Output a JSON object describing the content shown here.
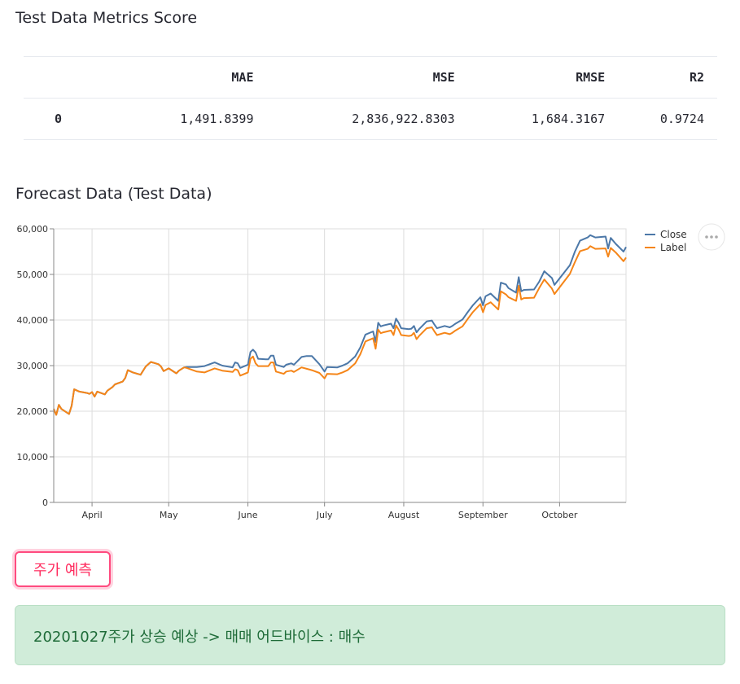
{
  "metrics_section": {
    "title": "Test Data Metrics Score",
    "columns": [
      "MAE",
      "MSE",
      "RMSE",
      "R2"
    ],
    "rows": [
      {
        "index": "0",
        "values": [
          "1,491.8399",
          "2,836,922.8303",
          "1,684.3167",
          "0.9724"
        ]
      }
    ]
  },
  "forecast_section": {
    "title": "Forecast Data (Test Data)"
  },
  "chart_data": {
    "type": "line",
    "title": "",
    "xlabel": "",
    "ylabel": "",
    "x_ticks": [
      "April",
      "May",
      "June",
      "July",
      "August",
      "September",
      "October"
    ],
    "x_range": [
      "2020-03-17",
      "2020-10-27"
    ],
    "ylim": [
      0,
      60000
    ],
    "y_ticks": [
      "0",
      "10,000",
      "20,000",
      "30,000",
      "40,000",
      "50,000",
      "60,000"
    ],
    "grid": true,
    "legend_position": "top-right",
    "series": [
      {
        "name": "Close",
        "color": "#4c78a8",
        "values": [
          [
            "2020-03-17",
            20500
          ],
          [
            "2020-03-18",
            19200
          ],
          [
            "2020-03-19",
            21400
          ],
          [
            "2020-03-20",
            20500
          ],
          [
            "2020-03-23",
            19400
          ],
          [
            "2020-03-24",
            21200
          ],
          [
            "2020-03-25",
            24800
          ],
          [
            "2020-03-27",
            24300
          ],
          [
            "2020-03-30",
            24000
          ],
          [
            "2020-03-31",
            23800
          ],
          [
            "2020-04-01",
            24200
          ],
          [
            "2020-04-02",
            23200
          ],
          [
            "2020-04-03",
            24300
          ],
          [
            "2020-04-06",
            23700
          ],
          [
            "2020-04-07",
            24500
          ],
          [
            "2020-04-09",
            25300
          ],
          [
            "2020-04-10",
            25900
          ],
          [
            "2020-04-13",
            26500
          ],
          [
            "2020-04-14",
            27300
          ],
          [
            "2020-04-15",
            29000
          ],
          [
            "2020-04-17",
            28500
          ],
          [
            "2020-04-20",
            28000
          ],
          [
            "2020-04-22",
            29800
          ],
          [
            "2020-04-24",
            30800
          ],
          [
            "2020-04-27",
            30300
          ],
          [
            "2020-04-28",
            29800
          ],
          [
            "2020-04-29",
            28800
          ],
          [
            "2020-05-01",
            29400
          ],
          [
            "2020-05-04",
            28300
          ],
          [
            "2020-05-05",
            28900
          ],
          [
            "2020-05-07",
            29600
          ],
          [
            "2020-05-08",
            29700
          ],
          [
            "2020-05-12",
            29700
          ],
          [
            "2020-05-15",
            29900
          ],
          [
            "2020-05-19",
            30700
          ],
          [
            "2020-05-22",
            30000
          ],
          [
            "2020-05-26",
            29600
          ],
          [
            "2020-05-27",
            30700
          ],
          [
            "2020-05-28",
            30500
          ],
          [
            "2020-05-29",
            29500
          ],
          [
            "2020-06-01",
            30200
          ],
          [
            "2020-06-02",
            33000
          ],
          [
            "2020-06-03",
            33500
          ],
          [
            "2020-06-04",
            32900
          ],
          [
            "2020-06-05",
            31500
          ],
          [
            "2020-06-08",
            31400
          ],
          [
            "2020-06-09",
            31400
          ],
          [
            "2020-06-10",
            32200
          ],
          [
            "2020-06-11",
            32200
          ],
          [
            "2020-06-12",
            30200
          ],
          [
            "2020-06-15",
            29700
          ],
          [
            "2020-06-16",
            30200
          ],
          [
            "2020-06-18",
            30500
          ],
          [
            "2020-06-19",
            30200
          ],
          [
            "2020-06-22",
            31900
          ],
          [
            "2020-06-24",
            32100
          ],
          [
            "2020-06-26",
            32100
          ],
          [
            "2020-06-29",
            30300
          ],
          [
            "2020-07-01",
            28700
          ],
          [
            "2020-07-02",
            29700
          ],
          [
            "2020-07-06",
            29600
          ],
          [
            "2020-07-08",
            30000
          ],
          [
            "2020-07-10",
            30500
          ],
          [
            "2020-07-13",
            32000
          ],
          [
            "2020-07-15",
            34000
          ],
          [
            "2020-07-17",
            36800
          ],
          [
            "2020-07-20",
            37500
          ],
          [
            "2020-07-21",
            35200
          ],
          [
            "2020-07-22",
            39400
          ],
          [
            "2020-07-23",
            38600
          ],
          [
            "2020-07-24",
            38800
          ],
          [
            "2020-07-27",
            39200
          ],
          [
            "2020-07-28",
            38200
          ],
          [
            "2020-07-29",
            40300
          ],
          [
            "2020-07-30",
            39400
          ],
          [
            "2020-07-31",
            38200
          ],
          [
            "2020-08-03",
            38000
          ],
          [
            "2020-08-04",
            38100
          ],
          [
            "2020-08-05",
            38700
          ],
          [
            "2020-08-06",
            37300
          ],
          [
            "2020-08-07",
            38000
          ],
          [
            "2020-08-10",
            39700
          ],
          [
            "2020-08-12",
            39900
          ],
          [
            "2020-08-13",
            39000
          ],
          [
            "2020-08-14",
            38200
          ],
          [
            "2020-08-17",
            38700
          ],
          [
            "2020-08-19",
            38400
          ],
          [
            "2020-08-20",
            38700
          ],
          [
            "2020-08-21",
            39100
          ],
          [
            "2020-08-24",
            40100
          ],
          [
            "2020-08-26",
            41700
          ],
          [
            "2020-08-28",
            43200
          ],
          [
            "2020-08-31",
            45000
          ],
          [
            "2020-09-01",
            43200
          ],
          [
            "2020-09-02",
            45200
          ],
          [
            "2020-09-04",
            45800
          ],
          [
            "2020-09-07",
            44200
          ],
          [
            "2020-09-08",
            48200
          ],
          [
            "2020-09-10",
            47800
          ],
          [
            "2020-09-11",
            47000
          ],
          [
            "2020-09-14",
            46000
          ],
          [
            "2020-09-15",
            49400
          ],
          [
            "2020-09-16",
            46300
          ],
          [
            "2020-09-17",
            46600
          ],
          [
            "2020-09-21",
            46700
          ],
          [
            "2020-09-23",
            48400
          ],
          [
            "2020-09-25",
            50700
          ],
          [
            "2020-09-28",
            49200
          ],
          [
            "2020-09-29",
            47700
          ],
          [
            "2020-10-05",
            52000
          ],
          [
            "2020-10-07",
            55000
          ],
          [
            "2020-10-09",
            57400
          ],
          [
            "2020-10-12",
            58100
          ],
          [
            "2020-10-13",
            58600
          ],
          [
            "2020-10-15",
            58100
          ],
          [
            "2020-10-19",
            58300
          ],
          [
            "2020-10-20",
            55700
          ],
          [
            "2020-10-21",
            58000
          ],
          [
            "2020-10-23",
            56700
          ],
          [
            "2020-10-26",
            55000
          ],
          [
            "2020-10-27",
            56000
          ]
        ]
      },
      {
        "name": "Label",
        "color": "#f58518",
        "values": [
          [
            "2020-03-17",
            20500
          ],
          [
            "2020-03-18",
            19200
          ],
          [
            "2020-03-19",
            21400
          ],
          [
            "2020-03-20",
            20500
          ],
          [
            "2020-03-23",
            19400
          ],
          [
            "2020-03-24",
            21200
          ],
          [
            "2020-03-25",
            24800
          ],
          [
            "2020-03-27",
            24300
          ],
          [
            "2020-03-30",
            24000
          ],
          [
            "2020-03-31",
            23800
          ],
          [
            "2020-04-01",
            24200
          ],
          [
            "2020-04-02",
            23200
          ],
          [
            "2020-04-03",
            24300
          ],
          [
            "2020-04-06",
            23700
          ],
          [
            "2020-04-07",
            24500
          ],
          [
            "2020-04-09",
            25300
          ],
          [
            "2020-04-10",
            25900
          ],
          [
            "2020-04-13",
            26500
          ],
          [
            "2020-04-14",
            27300
          ],
          [
            "2020-04-15",
            29000
          ],
          [
            "2020-04-17",
            28500
          ],
          [
            "2020-04-20",
            28000
          ],
          [
            "2020-04-22",
            29800
          ],
          [
            "2020-04-24",
            30800
          ],
          [
            "2020-04-27",
            30300
          ],
          [
            "2020-04-28",
            29800
          ],
          [
            "2020-04-29",
            28800
          ],
          [
            "2020-05-01",
            29400
          ],
          [
            "2020-05-04",
            28300
          ],
          [
            "2020-05-05",
            28900
          ],
          [
            "2020-05-07",
            29600
          ],
          [
            "2020-05-08",
            29500
          ],
          [
            "2020-05-12",
            28700
          ],
          [
            "2020-05-15",
            28500
          ],
          [
            "2020-05-19",
            29400
          ],
          [
            "2020-05-22",
            28900
          ],
          [
            "2020-05-26",
            28600
          ],
          [
            "2020-05-27",
            29200
          ],
          [
            "2020-05-28",
            29000
          ],
          [
            "2020-05-29",
            27800
          ],
          [
            "2020-06-01",
            28500
          ],
          [
            "2020-06-02",
            31500
          ],
          [
            "2020-06-03",
            32000
          ],
          [
            "2020-06-04",
            30500
          ],
          [
            "2020-06-05",
            29900
          ],
          [
            "2020-06-08",
            29900
          ],
          [
            "2020-06-09",
            29900
          ],
          [
            "2020-06-10",
            30700
          ],
          [
            "2020-06-11",
            30700
          ],
          [
            "2020-06-12",
            28700
          ],
          [
            "2020-06-15",
            28200
          ],
          [
            "2020-06-16",
            28700
          ],
          [
            "2020-06-18",
            28900
          ],
          [
            "2020-06-19",
            28600
          ],
          [
            "2020-06-22",
            29600
          ],
          [
            "2020-06-24",
            29300
          ],
          [
            "2020-06-26",
            29000
          ],
          [
            "2020-06-29",
            28400
          ],
          [
            "2020-07-01",
            27200
          ],
          [
            "2020-07-02",
            28200
          ],
          [
            "2020-07-06",
            28100
          ],
          [
            "2020-07-08",
            28500
          ],
          [
            "2020-07-10",
            29000
          ],
          [
            "2020-07-13",
            30500
          ],
          [
            "2020-07-15",
            32500
          ],
          [
            "2020-07-17",
            35300
          ],
          [
            "2020-07-20",
            36000
          ],
          [
            "2020-07-21",
            33700
          ],
          [
            "2020-07-22",
            37900
          ],
          [
            "2020-07-23",
            37100
          ],
          [
            "2020-07-24",
            37300
          ],
          [
            "2020-07-27",
            37700
          ],
          [
            "2020-07-28",
            36700
          ],
          [
            "2020-07-29",
            38800
          ],
          [
            "2020-07-30",
            37900
          ],
          [
            "2020-07-31",
            36700
          ],
          [
            "2020-08-03",
            36500
          ],
          [
            "2020-08-04",
            36600
          ],
          [
            "2020-08-05",
            37200
          ],
          [
            "2020-08-06",
            35800
          ],
          [
            "2020-08-07",
            36500
          ],
          [
            "2020-08-10",
            38200
          ],
          [
            "2020-08-12",
            38400
          ],
          [
            "2020-08-13",
            37500
          ],
          [
            "2020-08-14",
            36700
          ],
          [
            "2020-08-17",
            37200
          ],
          [
            "2020-08-19",
            36900
          ],
          [
            "2020-08-20",
            37200
          ],
          [
            "2020-08-21",
            37600
          ],
          [
            "2020-08-24",
            38600
          ],
          [
            "2020-08-26",
            40200
          ],
          [
            "2020-08-28",
            41700
          ],
          [
            "2020-08-31",
            43500
          ],
          [
            "2020-09-01",
            41700
          ],
          [
            "2020-09-02",
            43300
          ],
          [
            "2020-09-04",
            43900
          ],
          [
            "2020-09-07",
            42300
          ],
          [
            "2020-09-08",
            46300
          ],
          [
            "2020-09-10",
            45600
          ],
          [
            "2020-09-11",
            45000
          ],
          [
            "2020-09-14",
            44200
          ],
          [
            "2020-09-15",
            47500
          ],
          [
            "2020-09-16",
            44500
          ],
          [
            "2020-09-17",
            44800
          ],
          [
            "2020-09-21",
            44900
          ],
          [
            "2020-09-23",
            47000
          ],
          [
            "2020-09-25",
            48900
          ],
          [
            "2020-09-28",
            46900
          ],
          [
            "2020-09-29",
            45700
          ],
          [
            "2020-10-05",
            50100
          ],
          [
            "2020-10-07",
            52700
          ],
          [
            "2020-10-09",
            55100
          ],
          [
            "2020-10-12",
            55600
          ],
          [
            "2020-10-13",
            56200
          ],
          [
            "2020-10-15",
            55600
          ],
          [
            "2020-10-19",
            55700
          ],
          [
            "2020-10-20",
            53900
          ],
          [
            "2020-10-21",
            55800
          ],
          [
            "2020-10-23",
            54800
          ],
          [
            "2020-10-26",
            52900
          ],
          [
            "2020-10-27",
            53700
          ]
        ]
      }
    ]
  },
  "predict_button": {
    "label": "주가 예측"
  },
  "result": {
    "text": "20201027주가 상승 예상 -> 매매 어드바이스 : 매수",
    "bg_color": "#d0ecd9",
    "text_color": "#1e6b38"
  },
  "colors": {
    "accent": "#ff4b7f"
  }
}
